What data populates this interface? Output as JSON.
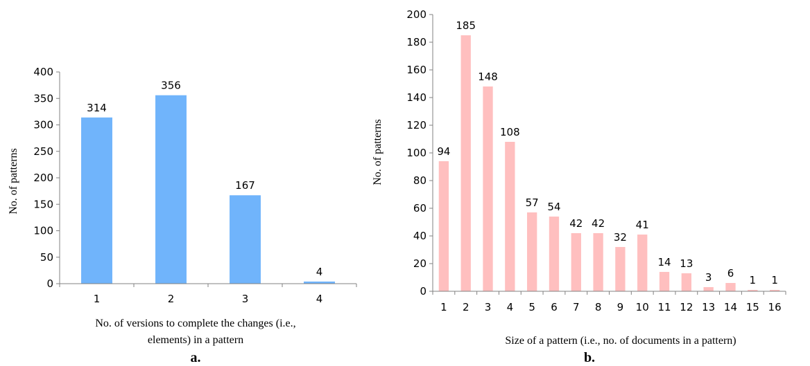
{
  "chart_data": [
    {
      "type": "bar",
      "caption": "a.",
      "categories": [
        "1",
        "2",
        "3",
        "4"
      ],
      "values": [
        314,
        356,
        167,
        4
      ],
      "xlabel_lines": [
        "No. of  versions to complete the changes (i.e.,",
        "elements) in a pattern"
      ],
      "ylabel": "No. of patterns",
      "ylim": [
        0,
        400
      ],
      "yticks": [
        "0",
        "50",
        "100",
        "150",
        "200",
        "250",
        "300",
        "350",
        "400"
      ],
      "bar_color": "#70b4fb",
      "grid": false
    },
    {
      "type": "bar",
      "caption": "b.",
      "categories": [
        "1",
        "2",
        "3",
        "4",
        "5",
        "6",
        "7",
        "8",
        "9",
        "10",
        "11",
        "12",
        "13",
        "14",
        "15",
        "16"
      ],
      "values": [
        94,
        185,
        148,
        108,
        57,
        54,
        42,
        42,
        32,
        41,
        14,
        13,
        3,
        6,
        1,
        1
      ],
      "xlabel": "Size of a pattern (i.e., no. of documents in a pattern)",
      "ylabel": "No. of patterns",
      "ylim": [
        0,
        200
      ],
      "yticks": [
        "0",
        "20",
        "40",
        "60",
        "80",
        "100",
        "120",
        "140",
        "160",
        "180",
        "200"
      ],
      "bar_color": "#ffbfbf",
      "grid": false
    }
  ]
}
